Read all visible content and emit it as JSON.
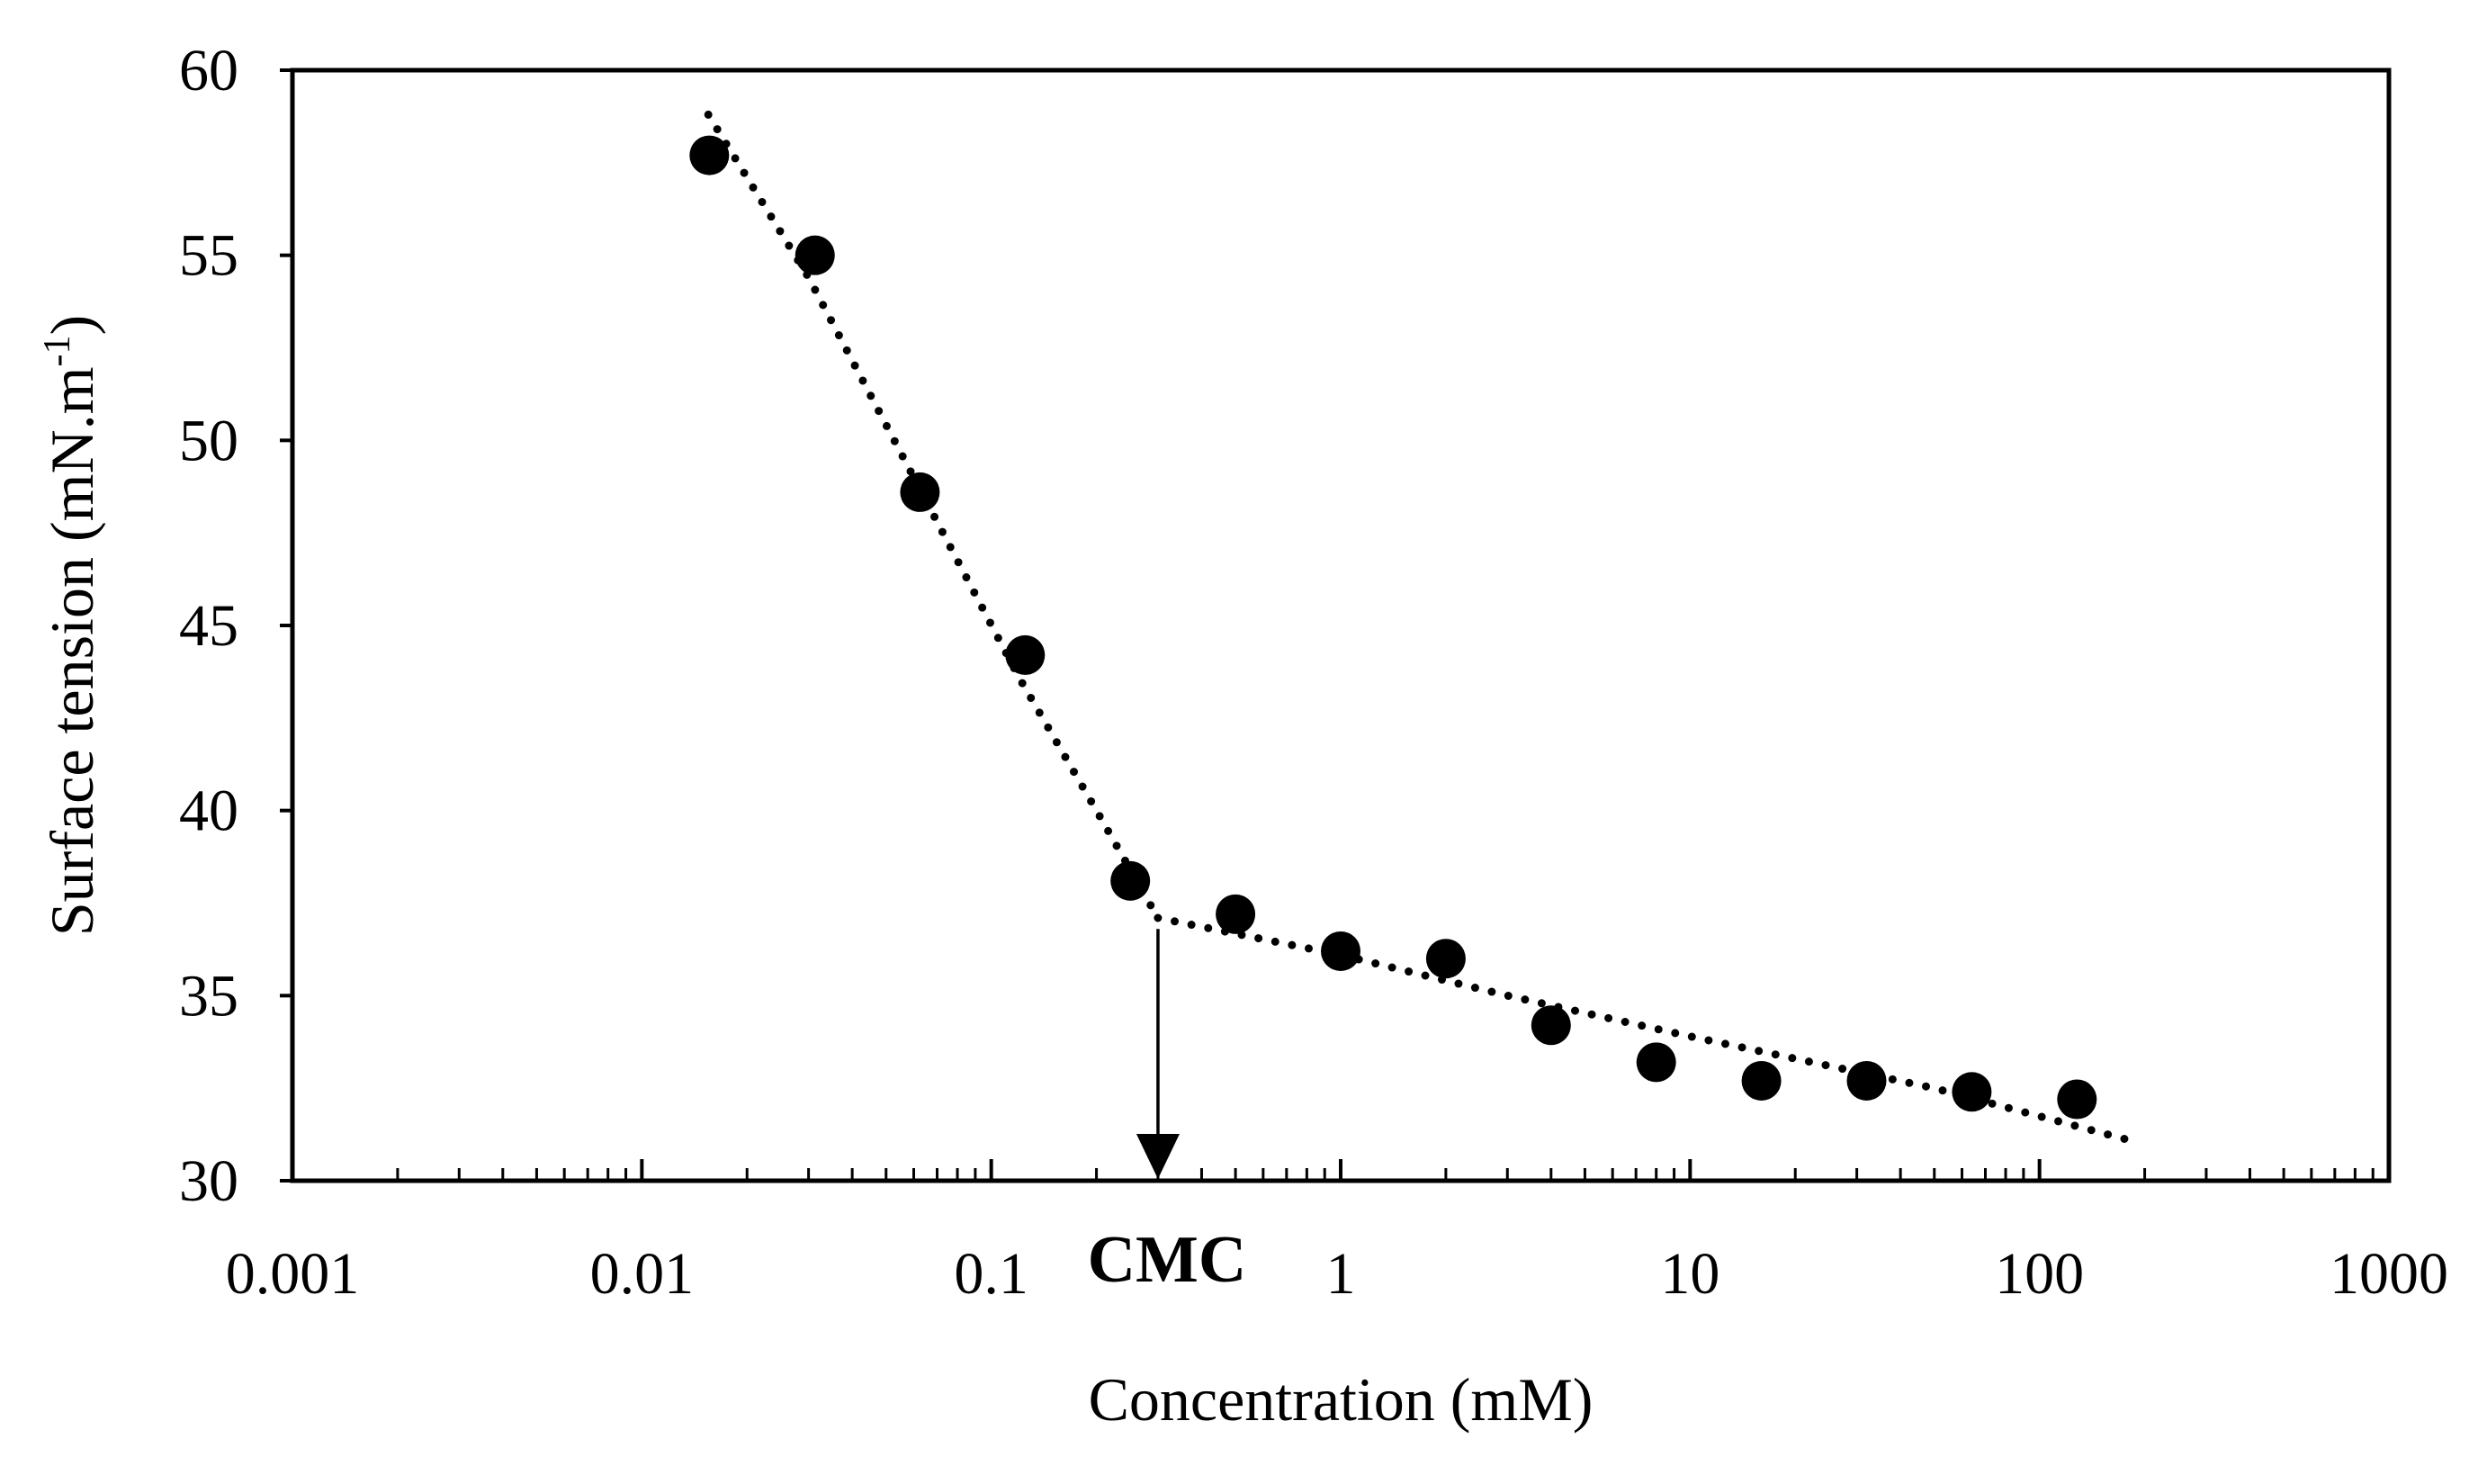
{
  "chart_data": {
    "type": "scatter",
    "title": "",
    "xlabel": "Concentration (mM)",
    "ylabel_main": "Surface tension (mN.m",
    "ylabel_sup": "-1",
    "ylabel_close": ")",
    "x_scale": "log",
    "xlim": [
      0.001,
      1000
    ],
    "ylim": [
      30,
      60
    ],
    "x_ticks": [
      {
        "value": 0.001,
        "label": "0.001"
      },
      {
        "value": 0.01,
        "label": "0.01"
      },
      {
        "value": 0.1,
        "label": "0.1"
      },
      {
        "value": 1,
        "label": "1"
      },
      {
        "value": 10,
        "label": "10"
      },
      {
        "value": 100,
        "label": "100"
      },
      {
        "value": 1000,
        "label": "1000"
      }
    ],
    "y_ticks": [
      {
        "value": 30,
        "label": "30"
      },
      {
        "value": 35,
        "label": "35"
      },
      {
        "value": 40,
        "label": "40"
      },
      {
        "value": 45,
        "label": "45"
      },
      {
        "value": 50,
        "label": "50"
      },
      {
        "value": 55,
        "label": "55"
      },
      {
        "value": 60,
        "label": "60"
      }
    ],
    "grid": false,
    "legend": "none",
    "series": [
      {
        "marker": "filled-circle",
        "color": "#000000",
        "points": [
          {
            "x": 0.0156,
            "y": 57.7
          },
          {
            "x": 0.0313,
            "y": 55.0
          },
          {
            "x": 0.0625,
            "y": 48.6
          },
          {
            "x": 0.125,
            "y": 44.2
          },
          {
            "x": 0.25,
            "y": 38.1
          },
          {
            "x": 0.5,
            "y": 37.2
          },
          {
            "x": 1.0,
            "y": 36.2
          },
          {
            "x": 2.0,
            "y": 36.0
          },
          {
            "x": 4.0,
            "y": 34.2
          },
          {
            "x": 8.0,
            "y": 33.2
          },
          {
            "x": 16.0,
            "y": 32.7
          },
          {
            "x": 32.0,
            "y": 32.7
          },
          {
            "x": 64.0,
            "y": 32.4
          },
          {
            "x": 128.0,
            "y": 32.2
          }
        ]
      }
    ],
    "trend_lines": [
      {
        "style": "dotted",
        "color": "#000000",
        "points": [
          {
            "x": 0.0155,
            "y": 58.8
          },
          {
            "x": 0.03,
            "y": 54.4
          },
          {
            "x": 0.06,
            "y": 49.0
          },
          {
            "x": 0.12,
            "y": 43.6
          },
          {
            "x": 0.2,
            "y": 40.0
          },
          {
            "x": 0.3,
            "y": 37.1
          }
        ]
      },
      {
        "style": "dotted",
        "color": "#000000",
        "points": [
          {
            "x": 0.3,
            "y": 37.1
          },
          {
            "x": 1.0,
            "y": 36.1
          },
          {
            "x": 3.0,
            "y": 35.0
          },
          {
            "x": 10.0,
            "y": 33.9
          },
          {
            "x": 50.0,
            "y": 32.5
          },
          {
            "x": 180.0,
            "y": 31.1
          }
        ]
      }
    ],
    "annotations": [
      {
        "text": "CMC",
        "x": 0.3,
        "arrow_from_y": 36.8,
        "arrow_to_y": 30
      }
    ]
  }
}
